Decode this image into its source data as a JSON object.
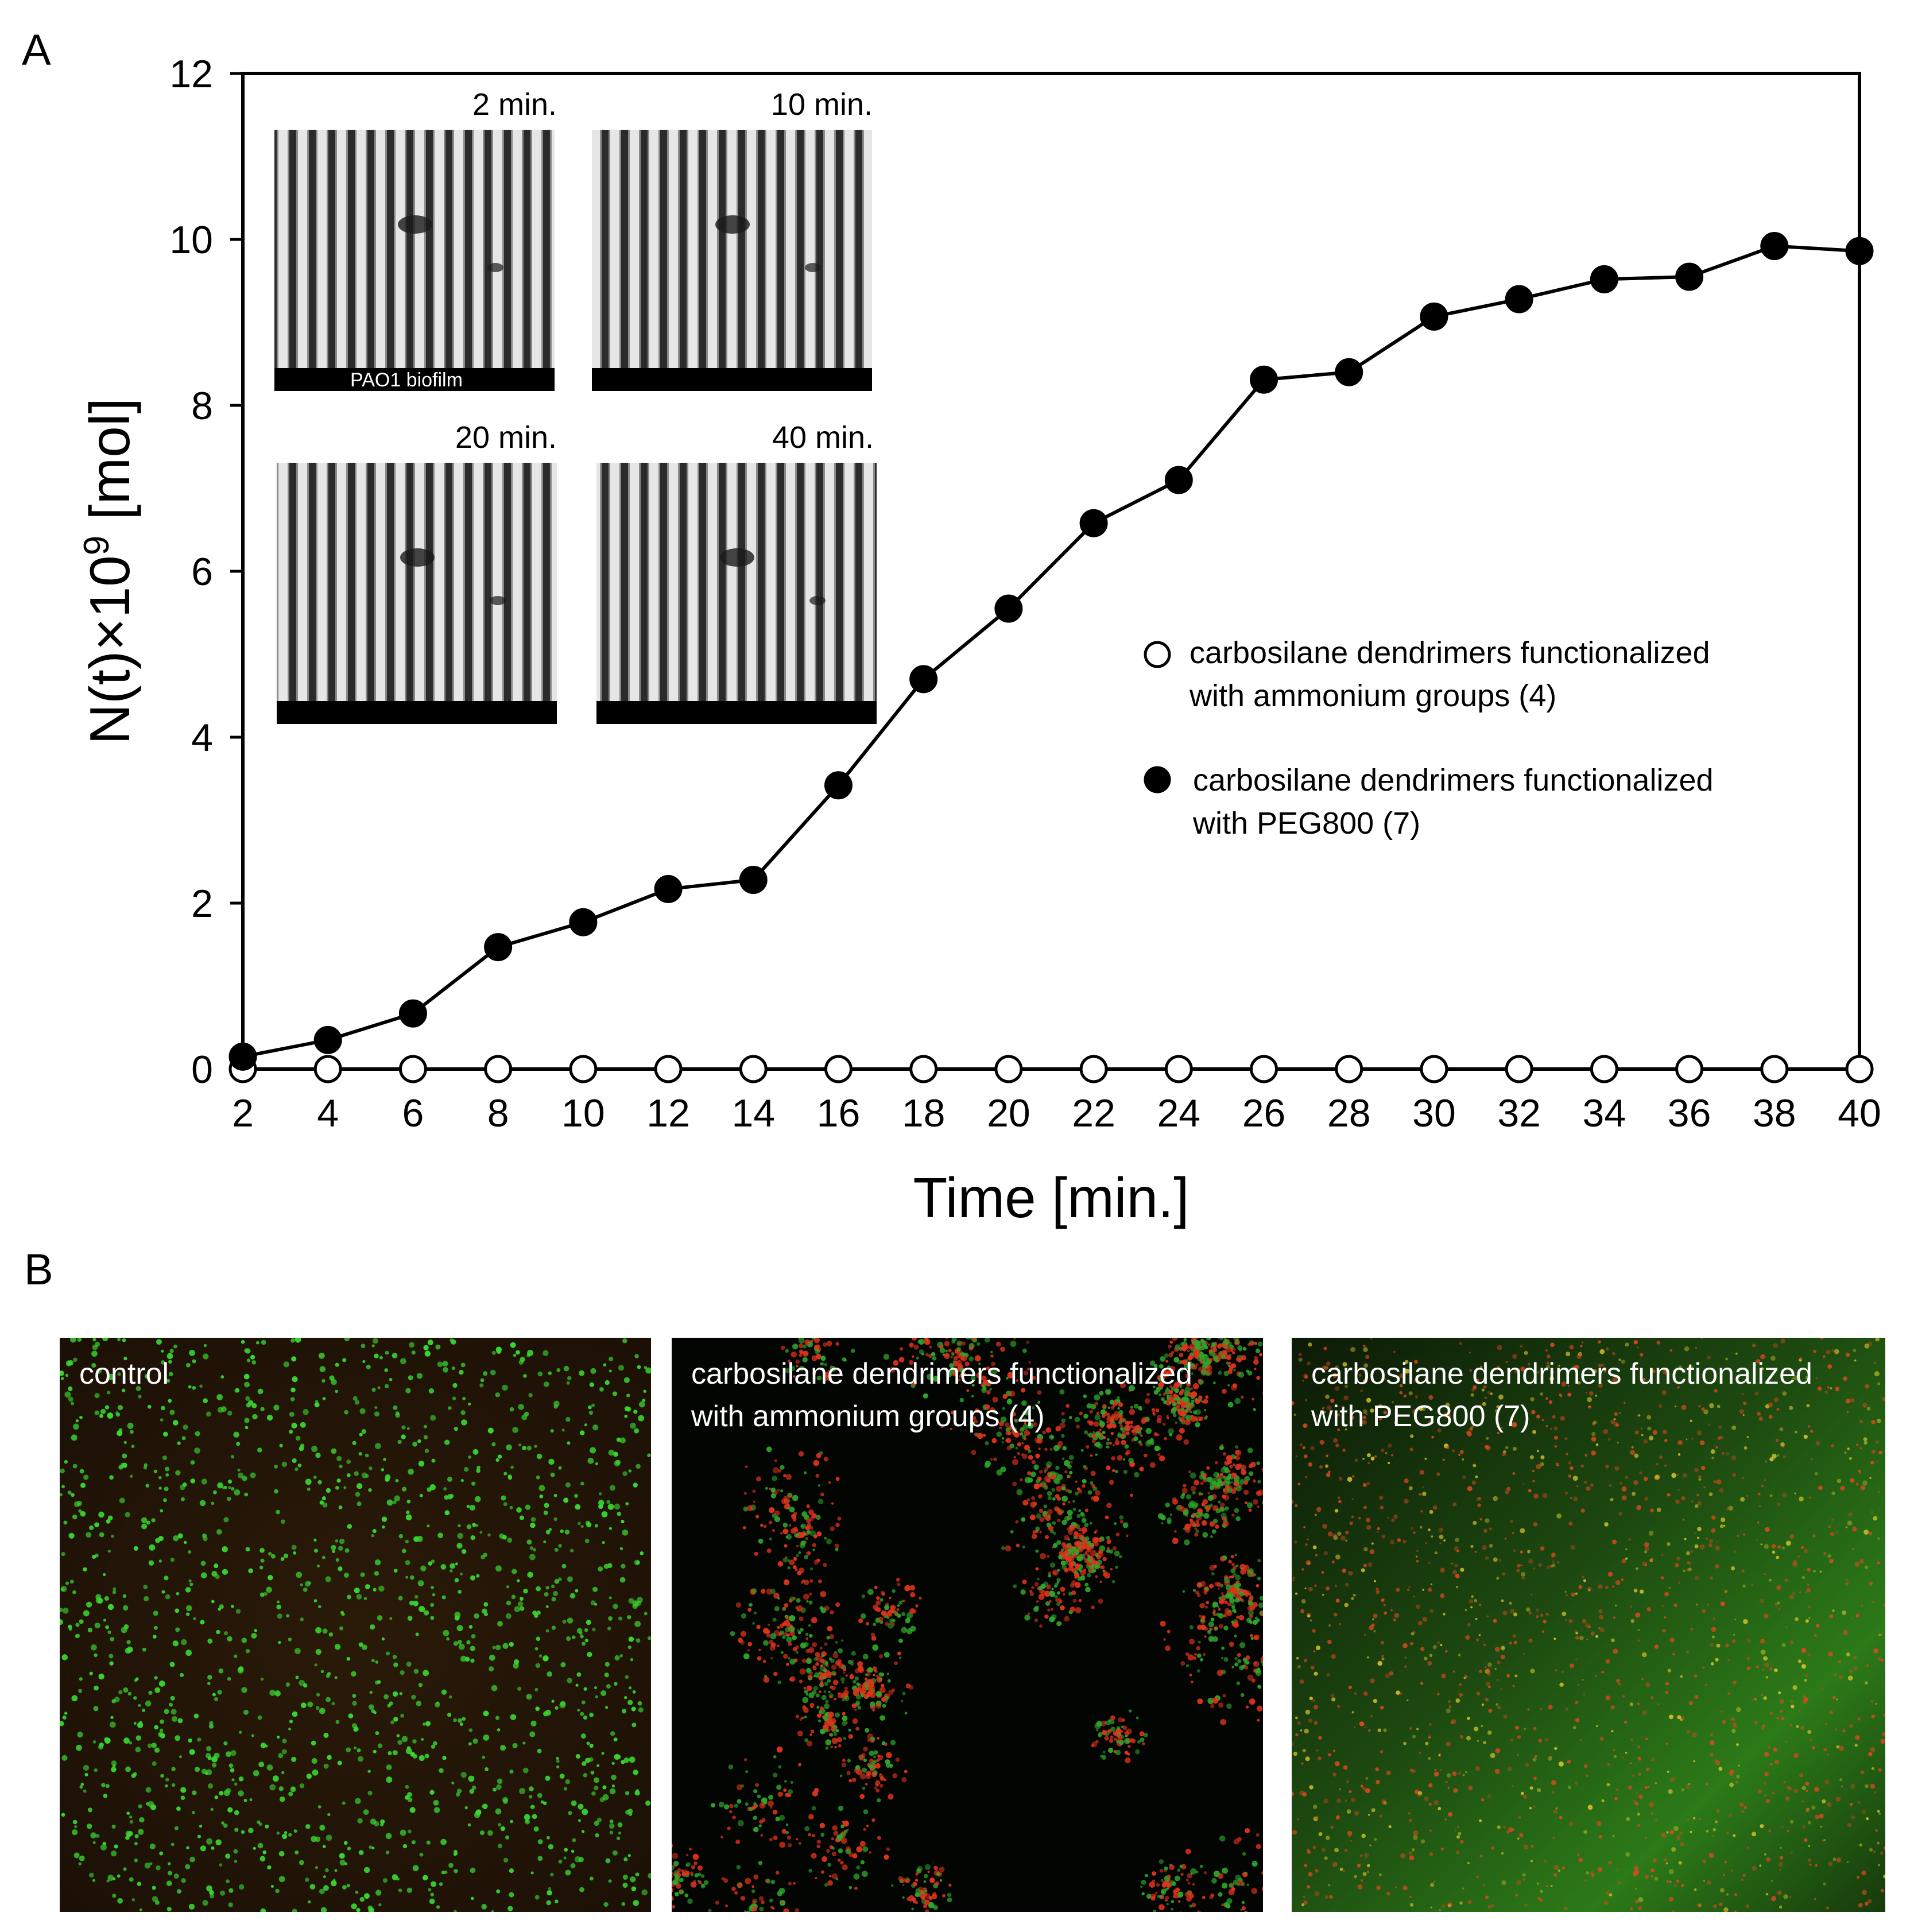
{
  "panels": {
    "a_label": "A",
    "b_label": "B"
  },
  "chart_data": {
    "type": "line",
    "title": "",
    "xlabel": "Time [min.]",
    "ylabel": "N(t)×10⁹ [mol]",
    "ylabel_parts": {
      "base": "N(t)×10",
      "sup": "9",
      "unit": " [mol]"
    },
    "xlim": [
      2,
      40
    ],
    "ylim": [
      0,
      12
    ],
    "x_ticks": [
      "2",
      "4",
      "6",
      "8",
      "10",
      "12",
      "14",
      "16",
      "18",
      "20",
      "22",
      "24",
      "26",
      "28",
      "30",
      "32",
      "34",
      "36",
      "38",
      "40"
    ],
    "y_ticks": [
      "0",
      "2",
      "4",
      "6",
      "8",
      "10",
      "12"
    ],
    "x": [
      2,
      4,
      6,
      8,
      10,
      12,
      14,
      16,
      18,
      20,
      22,
      24,
      26,
      28,
      30,
      32,
      34,
      36,
      38,
      40
    ],
    "grid": false,
    "legend_position": "right-middle",
    "series": [
      {
        "name": "carbosilane dendrimers functionalized with ammonium groups (4)",
        "legend_lines": [
          "carbosilane dendrimers functionalized",
          "with ammonium groups (4)"
        ],
        "marker": "open-circle",
        "values": [
          0,
          0,
          0,
          0,
          0,
          0,
          0,
          0,
          0,
          0,
          0,
          0,
          0,
          0,
          0,
          0,
          0,
          0,
          0,
          0
        ]
      },
      {
        "name": "carbosilane dendrimers functionalized with PEG800 (7)",
        "legend_lines": [
          "carbosilane dendrimers functionalized",
          "with PEG800 (7)"
        ],
        "marker": "filled-circle",
        "values": [
          0.15,
          0.35,
          0.67,
          1.47,
          1.77,
          2.17,
          2.28,
          3.42,
          4.7,
          5.55,
          6.58,
          7.1,
          8.31,
          8.4,
          9.07,
          9.28,
          9.52,
          9.55,
          9.92,
          9.86
        ]
      }
    ]
  },
  "insets": [
    {
      "time": "2 min.",
      "caption": "PAO1 biofilm"
    },
    {
      "time": "10 min.",
      "caption": ""
    },
    {
      "time": "20 min.",
      "caption": ""
    },
    {
      "time": "40 min.",
      "caption": ""
    }
  ],
  "micrographs": [
    {
      "label_lines": [
        "control"
      ]
    },
    {
      "label_lines": [
        "carbosilane dendrimers functionalized",
        "with ammonium groups (4)"
      ]
    },
    {
      "label_lines": [
        "carbosilane dendrimers functionalized",
        "with PEG800 (7)"
      ]
    }
  ],
  "colors": {
    "line": "#000000",
    "open_fill": "#ffffff",
    "filled_fill": "#000000",
    "live_stain": "#39d62f",
    "dead_stain": "#e0321b",
    "background_dark": "#050805"
  }
}
